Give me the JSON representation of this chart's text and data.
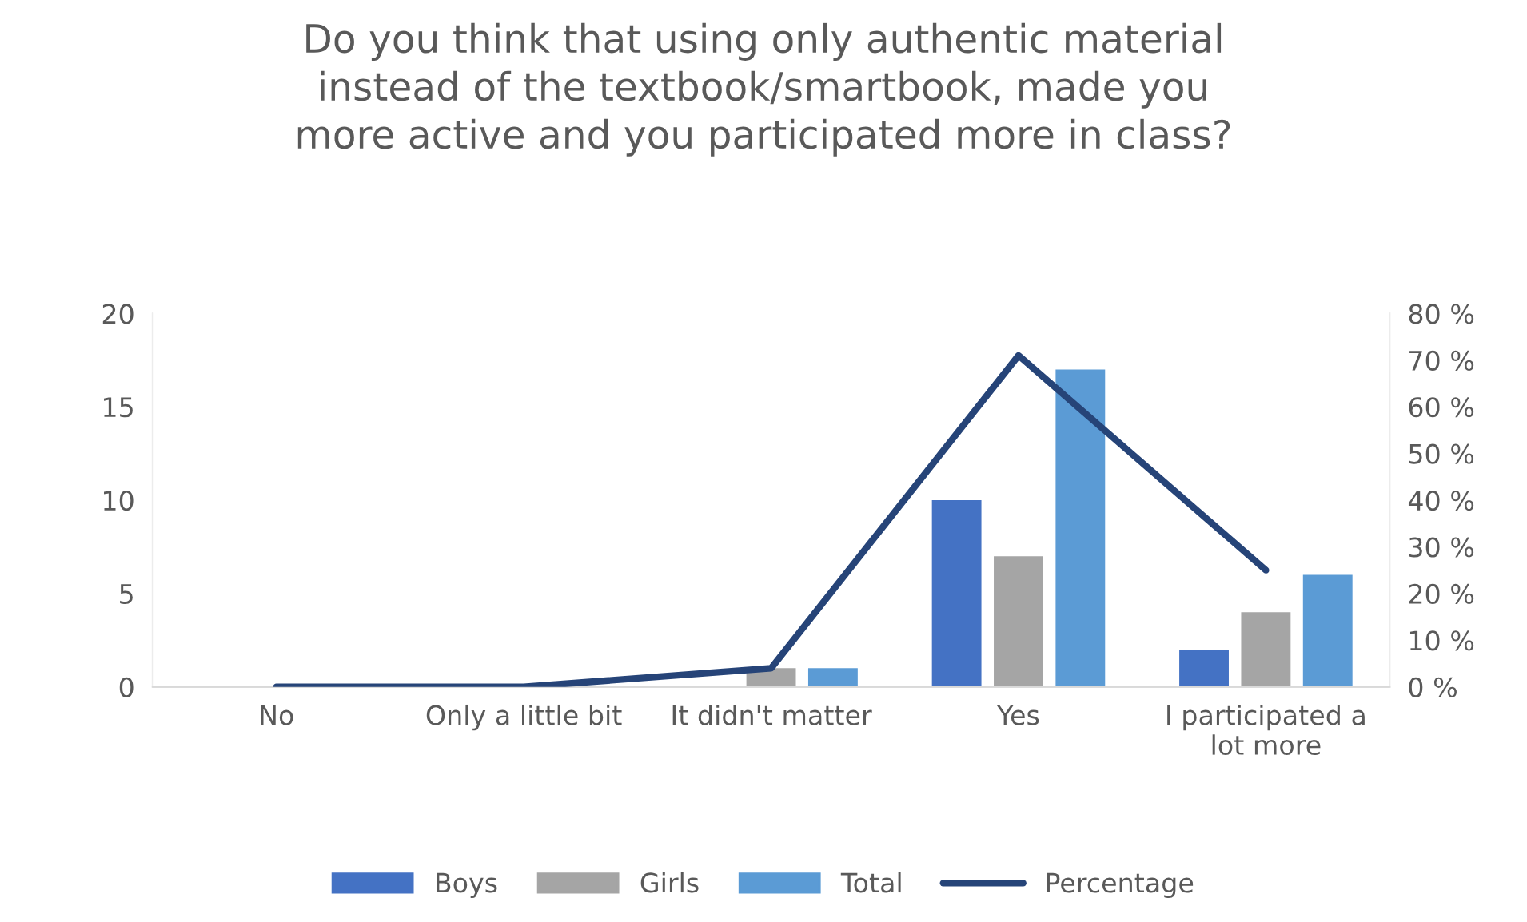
{
  "chart_data": {
    "type": "bar",
    "title": "Do you think that using only authentic material\ninstead of the textbook/smartbook, made you\nmore active and you participated more in class?",
    "categories": [
      "No",
      "Only a little bit",
      "It didn't matter",
      "Yes",
      "I participated a\nlot more"
    ],
    "series": [
      {
        "name": "Boys",
        "color": "#4472c4",
        "values": [
          0,
          0,
          0,
          10,
          2
        ]
      },
      {
        "name": "Girls",
        "color": "#a5a5a5",
        "values": [
          0,
          0,
          1,
          7,
          4
        ]
      },
      {
        "name": "Total",
        "color": "#5b9bd5",
        "values": [
          0,
          0,
          1,
          17,
          6
        ]
      },
      {
        "name": "Percentage",
        "type": "line",
        "axis": "y2",
        "color": "#264478",
        "values": [
          0,
          0,
          4,
          71,
          25
        ]
      }
    ],
    "ylim": [
      0,
      20
    ],
    "yticks": [
      0,
      5,
      10,
      15,
      20
    ],
    "y2lim": [
      0,
      80
    ],
    "y2ticks": [
      {
        "value": 0,
        "label": "0 %"
      },
      {
        "value": 10,
        "label": "10 %"
      },
      {
        "value": 20,
        "label": "20 %"
      },
      {
        "value": 30,
        "label": "30 %"
      },
      {
        "value": 40,
        "label": "40 %"
      },
      {
        "value": 50,
        "label": "50 %"
      },
      {
        "value": 60,
        "label": "60 %"
      },
      {
        "value": 70,
        "label": "70 %"
      },
      {
        "value": 80,
        "label": "80 %"
      }
    ],
    "grid": false,
    "legend": "bottom"
  }
}
